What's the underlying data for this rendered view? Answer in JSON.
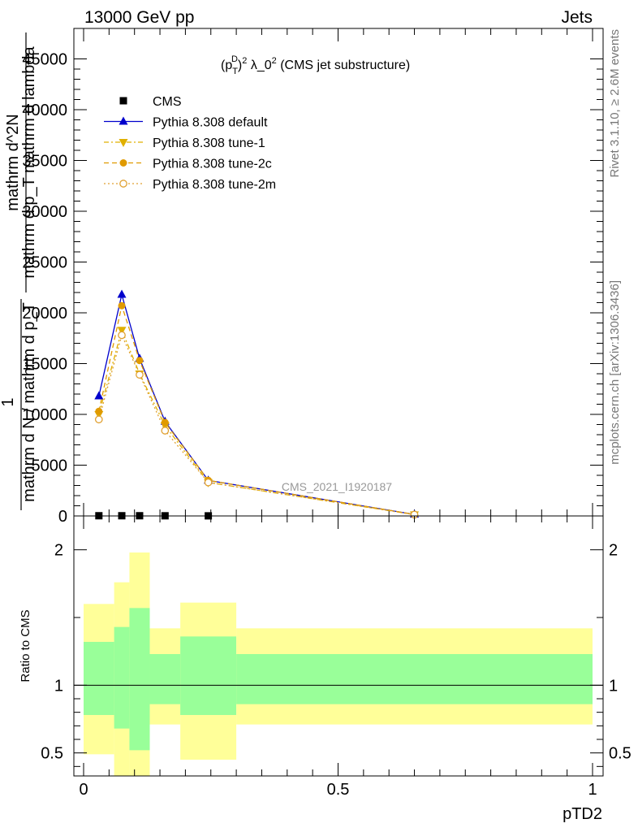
{
  "header": {
    "energy_label": "13000 GeV pp",
    "category_label": "Jets"
  },
  "side_text": {
    "rivet": "Rivet 3.1.10, ≥ 2.6M events",
    "mcplots": "mcplots.cern.ch [arXiv:1306.3436]"
  },
  "watermark": "CMS_2021_I1920187",
  "chart_data": [
    {
      "type": "line",
      "title_parts": {
        "p": "(p",
        "sub": "T",
        "sup": "D",
        "tail": ")",
        "pow": "2",
        "mid": " λ_0",
        "pow2": "2",
        "end": " (CMS jet substructure)"
      },
      "ylabel": "1 / mathrm d N / mathrm d p_T mathrm d^N / mathrm d p_T mathrm d lambda",
      "ylabel_lines": [
        "mathrm d^2N",
        "mathrm d p_T mathrm d lambda",
        "1",
        "mathrm d N / mathrm d p_T"
      ],
      "xlim": [
        0,
        1
      ],
      "ylim": [
        0,
        48000
      ],
      "yticks": [
        0,
        5000,
        10000,
        15000,
        20000,
        25000,
        30000,
        35000,
        40000,
        45000
      ],
      "ytick_labels": [
        "0",
        "5000",
        "10000",
        "15000",
        "20000",
        "25000",
        "30000",
        "35000",
        "40000",
        "45000"
      ],
      "legend_position": "top-left",
      "series": [
        {
          "name": "CMS",
          "color": "#000000",
          "marker": "square",
          "x": [
            0.03,
            0.075,
            0.11,
            0.16,
            0.245
          ],
          "y": [
            20,
            20,
            20,
            15,
            10
          ]
        },
        {
          "name": "Pythia 8.308 default",
          "color": "#0000cc",
          "marker": "triangle-up",
          "line": "solid",
          "x": [
            0.03,
            0.075,
            0.11,
            0.16,
            0.245,
            0.65
          ],
          "y": [
            11800,
            21800,
            15500,
            9300,
            3500,
            150
          ]
        },
        {
          "name": "Pythia 8.308 tune-1",
          "color": "#e0b000",
          "marker": "triangle-down",
          "line": "dashdot",
          "x": [
            0.03,
            0.075,
            0.11,
            0.16,
            0.245,
            0.65
          ],
          "y": [
            10000,
            18300,
            14000,
            8900,
            3300,
            130
          ]
        },
        {
          "name": "Pythia 8.308 tune-2c",
          "color": "#e09a00",
          "marker": "circle",
          "line": "dashed",
          "x": [
            0.03,
            0.075,
            0.11,
            0.16,
            0.245,
            0.65
          ],
          "y": [
            10300,
            20700,
            15300,
            9200,
            3500,
            150
          ]
        },
        {
          "name": "Pythia 8.308 tune-2m",
          "color": "#e0a030",
          "marker": "circle-open",
          "line": "dotted",
          "x": [
            0.03,
            0.075,
            0.11,
            0.16,
            0.245,
            0.65
          ],
          "y": [
            9500,
            17800,
            13900,
            8400,
            3300,
            130
          ]
        }
      ]
    },
    {
      "type": "area",
      "ylabel": "Ratio to CMS",
      "xlabel": "pTD2",
      "xlim": [
        0,
        1
      ],
      "ylim": [
        0.33,
        2.25
      ],
      "yticks": [
        0.5,
        1,
        2
      ],
      "ytick_labels": [
        "0.5",
        "1",
        "2"
      ],
      "xticks": [
        0,
        0.5,
        1
      ],
      "xtick_labels": [
        "0",
        "0.5",
        "1"
      ],
      "bins": [
        {
          "x0": 0.0,
          "x1": 0.06,
          "green": [
            0.78,
            1.32
          ],
          "yellow": [
            0.49,
            1.6
          ]
        },
        {
          "x0": 0.06,
          "x1": 0.09,
          "green": [
            0.68,
            1.43
          ],
          "yellow": [
            0.33,
            1.76
          ]
        },
        {
          "x0": 0.09,
          "x1": 0.13,
          "green": [
            0.52,
            1.57
          ],
          "yellow": [
            0.33,
            1.98
          ]
        },
        {
          "x0": 0.13,
          "x1": 0.19,
          "green": [
            0.86,
            1.23
          ],
          "yellow": [
            0.71,
            1.42
          ]
        },
        {
          "x0": 0.19,
          "x1": 0.3,
          "green": [
            0.78,
            1.36
          ],
          "yellow": [
            0.45,
            1.61
          ]
        },
        {
          "x0": 0.3,
          "x1": 1.0,
          "green": [
            0.86,
            1.23
          ],
          "yellow": [
            0.71,
            1.42
          ]
        }
      ]
    }
  ]
}
